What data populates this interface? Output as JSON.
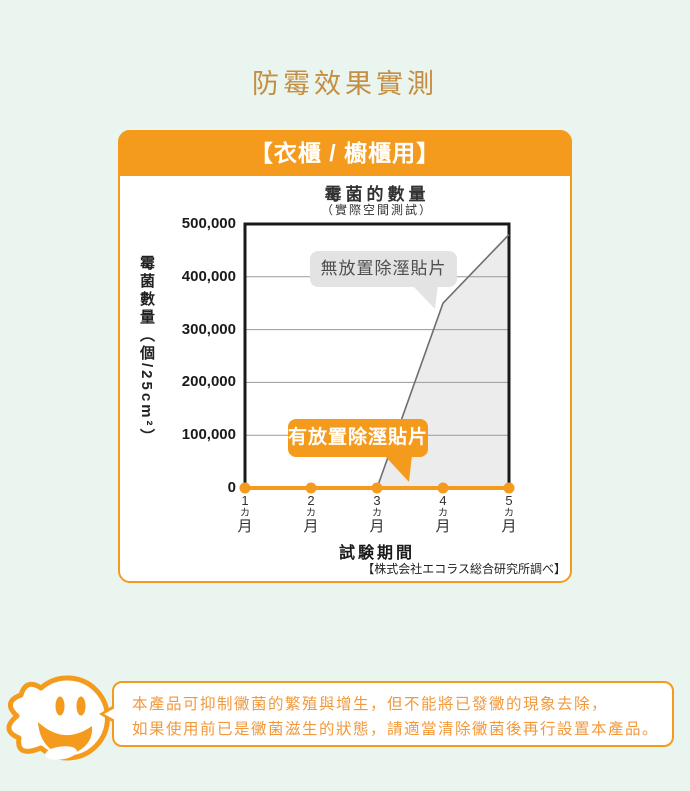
{
  "page": {
    "title": "防霉效果實測",
    "bg_color": "#E9F5EE",
    "accent_color": "#F49B1E",
    "title_color": "#C68E42"
  },
  "panel": {
    "header": "【衣櫃 / 櫥櫃用】"
  },
  "chart_data": {
    "type": "line",
    "title": "霉菌的數量",
    "subtitle": "（實際空間測試）",
    "ylabel": "霉菌數量（個/25cm²）",
    "xlabel": "試験期間",
    "source": "【株式会社エコラス総合研究所調べ】",
    "ylim": [
      0,
      500000
    ],
    "ytick_labels": [
      "500,000",
      "400,000",
      "300,000",
      "200,000",
      "100,000",
      "0"
    ],
    "categories": [
      "1",
      "2",
      "3",
      "4",
      "5"
    ],
    "category_unit": "カ月",
    "grid": true,
    "legend_position": "callouts-on-plot",
    "series": [
      {
        "name": "無放置除溼貼片",
        "values": [
          0,
          0,
          0,
          350000,
          480000
        ],
        "color": "#6e6e6e",
        "fill": "#ECECEC",
        "markers": false
      },
      {
        "name": "有放置除溼貼片",
        "values": [
          0,
          0,
          0,
          0,
          0
        ],
        "color": "#F49B1E",
        "fill": null,
        "markers": true
      }
    ]
  },
  "footer": {
    "line1": "本產品可抑制黴菌的繁殖與增生，但不能將已發黴的現象去除，",
    "line2": "如果使用前已是黴菌滋生的狀態，請適當清除黴菌後再行設置本產品。",
    "mascot": "smiling-ghost-mascot-icon"
  }
}
